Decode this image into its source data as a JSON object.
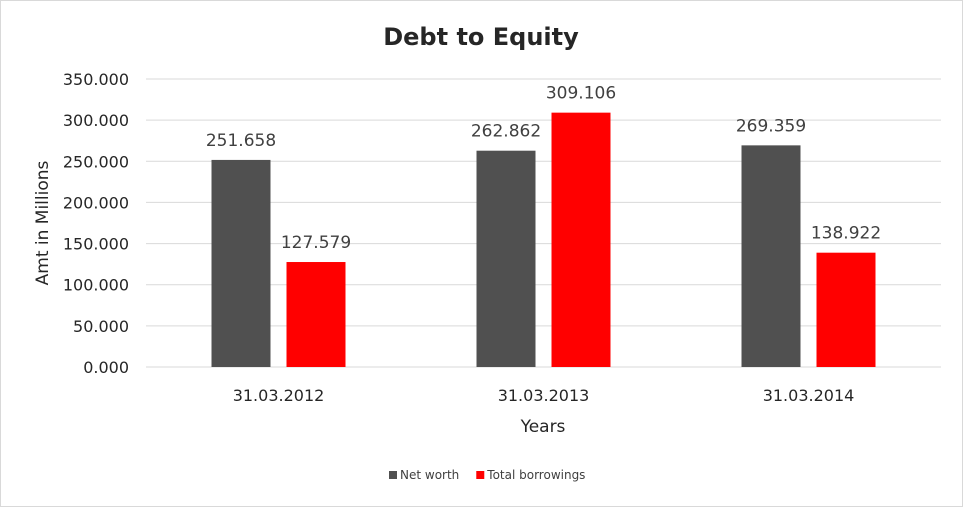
{
  "chart_data": {
    "type": "bar",
    "title": "Debt to Equity",
    "xlabel": "Years",
    "ylabel": "Amt in Millions",
    "categories": [
      "31.03.2012",
      "31.03.2013",
      "31.03.2014"
    ],
    "series": [
      {
        "name": "Net worth",
        "values": [
          251.658,
          262.862,
          269.359
        ],
        "labels": [
          "251.658",
          "262.862",
          "269.359"
        ],
        "color": "#505050"
      },
      {
        "name": "Total borrowings",
        "values": [
          127.579,
          309.106,
          138.922
        ],
        "labels": [
          "127.579",
          "309.106",
          "138.922"
        ],
        "color": "#ff0000"
      }
    ],
    "ylim": [
      0,
      350
    ],
    "yticks": [
      0,
      50,
      100,
      150,
      200,
      250,
      300,
      350
    ],
    "ytick_labels": [
      "0.000",
      "50.000",
      "100.000",
      "150.000",
      "200.000",
      "250.000",
      "300.000",
      "350.000"
    ],
    "grid": true,
    "legend_position": "bottom"
  }
}
